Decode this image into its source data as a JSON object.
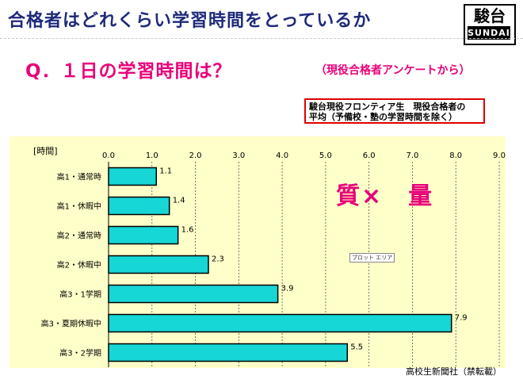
{
  "header": {
    "title": "合格者はどれくらい学習時間をとっているか",
    "logo_text": "駿台",
    "logo_sub": "SUNDAI"
  },
  "question": {
    "main": "Q．１日の学習時間は？",
    "source": "（現役合格者アンケートから）"
  },
  "note": {
    "line1": "駿台現役フロンティア生　現役合格者の",
    "line2": "平均（予備校・塾の学習時間を除く）"
  },
  "emphasis": "質×　量",
  "plot_area_label": "プロット エリア",
  "credit": "高校生新聞社（禁転載）",
  "colors": {
    "title": "#1f2a7a",
    "accent": "#e8007a",
    "bar_fill": "#17d6d6",
    "plot_band": "#ffffc9",
    "note_border": "#e00000"
  },
  "chart_data": {
    "type": "bar",
    "orientation": "horizontal",
    "ylabel": "[時間]",
    "categories": [
      "高1・通常時",
      "高1・休暇中",
      "高2・通常時",
      "高2・休暇中",
      "高3・1学期",
      "高3・夏期休暇中",
      "高3・2学期"
    ],
    "values": [
      1.1,
      1.4,
      1.6,
      2.3,
      3.9,
      7.9,
      5.5
    ],
    "value_labels": [
      "1.1",
      "1.4",
      "1.6",
      "2.3",
      "3.9",
      "7.9",
      "5.5"
    ],
    "xlim": [
      0,
      9
    ],
    "ticks": [
      "0.0",
      "1.0",
      "2.0",
      "3.0",
      "4.0",
      "5.0",
      "6.0",
      "7.0",
      "8.0",
      "9.0"
    ],
    "grid": true,
    "legend": "none"
  }
}
